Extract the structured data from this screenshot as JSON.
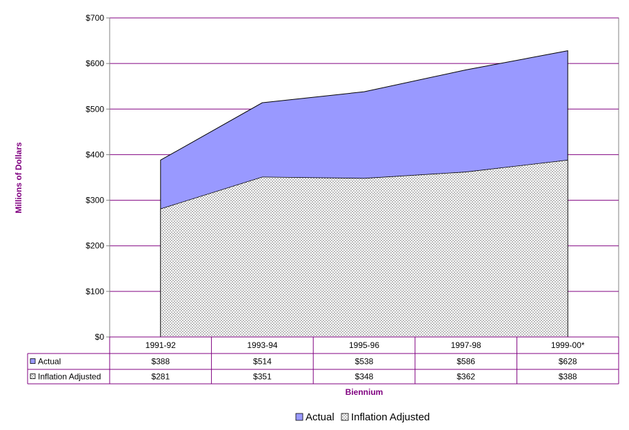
{
  "chart_data": {
    "type": "area",
    "title": "",
    "xlabel": "Biennium",
    "ylabel": "Millions of Dollars",
    "categories": [
      "1991-92",
      "1993-94",
      "1995-96",
      "1997-98",
      "1999-00*"
    ],
    "series": [
      {
        "name": "Actual",
        "values": [
          388,
          514,
          538,
          586,
          628
        ],
        "color": "#9999ff",
        "labels": [
          "$388",
          "$514",
          "$538",
          "$586",
          "$628"
        ]
      },
      {
        "name": "Inflation Adjusted",
        "values": [
          281,
          351,
          348,
          362,
          388
        ],
        "color": "#ffffff",
        "pattern": "dotted",
        "labels": [
          "$281",
          "$351",
          "$348",
          "$362",
          "$388"
        ]
      }
    ],
    "ylim": [
      0,
      700
    ],
    "yticks": [
      0,
      100,
      200,
      300,
      400,
      500,
      600,
      700
    ],
    "ytick_labels": [
      "$0",
      "$100",
      "$200",
      "$300",
      "$400",
      "$500",
      "$600",
      "$700"
    ],
    "grid": true,
    "gridline_color": "#800080",
    "legend": "bottom",
    "data_table": true
  }
}
